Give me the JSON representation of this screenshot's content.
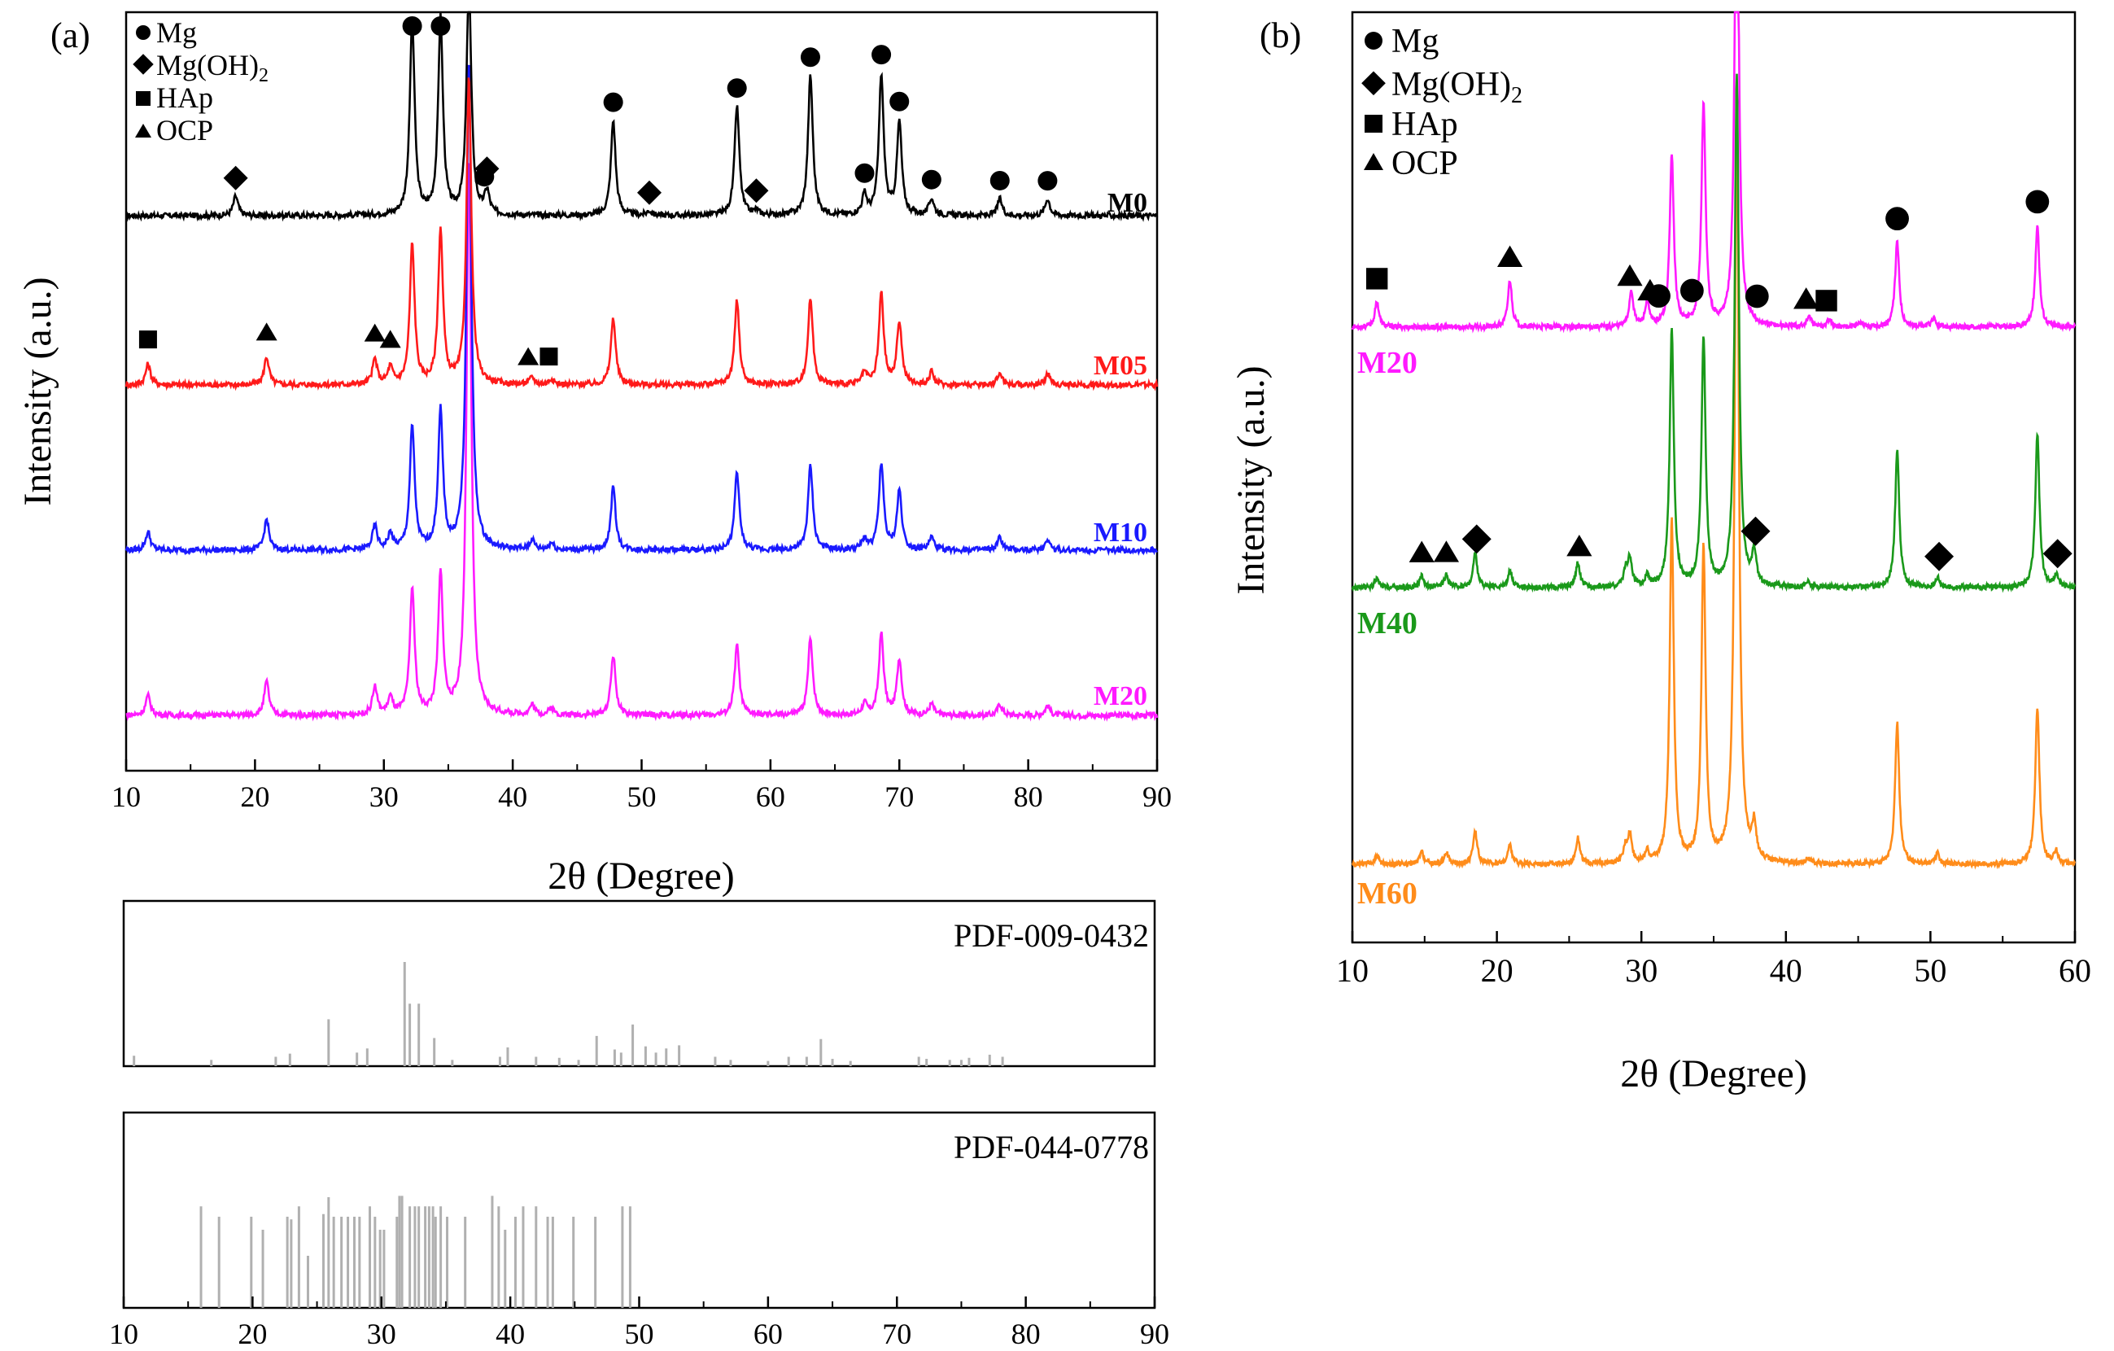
{
  "colors": {
    "M0": "#000000",
    "M05": "#ff1a1a",
    "M10": "#1a1aff",
    "M20": "#ff1aff",
    "M40": "#1a991a",
    "M60": "#ff8c1a",
    "pdf_lines": "#b0b0b0",
    "axis": "#000000"
  },
  "chart_data": [
    {
      "type": "line",
      "panel": "(a)",
      "title": "",
      "xlabel": "2θ (Degree)",
      "ylabel": "Intensity (a.u.)",
      "xlim": [
        10,
        90
      ],
      "xticks": [
        10,
        20,
        30,
        40,
        50,
        60,
        70,
        80,
        90
      ],
      "legend": [
        "Mg",
        "Mg(OH)2",
        "HAp",
        "OCP"
      ],
      "legend_display": {
        "mg": "Mg",
        "mgoh": "Mg(OH)",
        "mgoh_sub": "2",
        "hap": "HAp",
        "ocp": "OCP"
      },
      "legend_position": "top-left",
      "series": [
        {
          "name": "M0",
          "peaks": [
            [
              18.5,
              14
            ],
            [
              32.2,
              140
            ],
            [
              34.4,
              140
            ],
            [
              36.6,
              165
            ],
            [
              38.0,
              16
            ],
            [
              47.8,
              68
            ],
            [
              50.6,
              3
            ],
            [
              57.4,
              78
            ],
            [
              58.9,
              3
            ],
            [
              63.1,
              100
            ],
            [
              67.3,
              14
            ],
            [
              68.6,
              100
            ],
            [
              70.0,
              66
            ],
            [
              72.5,
              12
            ],
            [
              77.8,
              12
            ],
            [
              81.5,
              12
            ]
          ]
        },
        {
          "name": "M05",
          "peaks": [
            [
              11.7,
              15
            ],
            [
              20.9,
              20
            ],
            [
              29.3,
              18
            ],
            [
              30.5,
              12
            ],
            [
              32.2,
              100
            ],
            [
              34.4,
              110
            ],
            [
              36.6,
              220
            ],
            [
              41.5,
              5
            ],
            [
              43.0,
              4
            ],
            [
              47.8,
              48
            ],
            [
              57.4,
              60
            ],
            [
              63.1,
              62
            ],
            [
              67.3,
              8
            ],
            [
              68.6,
              65
            ],
            [
              70.0,
              45
            ],
            [
              72.5,
              9
            ],
            [
              77.8,
              9
            ],
            [
              81.5,
              8
            ]
          ]
        },
        {
          "name": "M10",
          "peaks": [
            [
              11.7,
              13
            ],
            [
              20.9,
              22
            ],
            [
              29.3,
              17
            ],
            [
              30.5,
              11
            ],
            [
              32.2,
              88
            ],
            [
              34.4,
              98
            ],
            [
              36.6,
              350
            ],
            [
              41.5,
              7
            ],
            [
              43.0,
              5
            ],
            [
              47.8,
              45
            ],
            [
              57.4,
              55
            ],
            [
              63.1,
              60
            ],
            [
              67.3,
              8
            ],
            [
              68.6,
              62
            ],
            [
              70.0,
              42
            ],
            [
              72.5,
              9
            ],
            [
              77.8,
              9
            ],
            [
              81.5,
              8
            ]
          ]
        },
        {
          "name": "M20",
          "peaks": [
            [
              11.7,
              14
            ],
            [
              20.9,
              24
            ],
            [
              29.3,
              20
            ],
            [
              30.5,
              12
            ],
            [
              32.2,
              90
            ],
            [
              34.4,
              100
            ],
            [
              36.6,
              400
            ],
            [
              41.5,
              7
            ],
            [
              43.0,
              5
            ],
            [
              47.8,
              43
            ],
            [
              57.4,
              50
            ],
            [
              63.1,
              55
            ],
            [
              67.3,
              8
            ],
            [
              68.6,
              58
            ],
            [
              70.0,
              40
            ],
            [
              72.5,
              8
            ],
            [
              77.8,
              8
            ],
            [
              81.5,
              7
            ]
          ]
        }
      ],
      "markers": {
        "M0": [
          {
            "type": "diamond",
            "x": [
              18.5,
              38.0,
              50.6,
              58.9
            ]
          },
          {
            "type": "circle",
            "x": [
              32.2,
              34.4,
              37.8,
              47.8,
              57.4,
              63.1,
              67.3,
              68.6,
              70.0,
              72.5,
              77.8,
              81.5
            ]
          }
        ],
        "M05": [
          {
            "type": "square",
            "x": [
              11.7,
              42.8
            ]
          },
          {
            "type": "triangle",
            "x": [
              20.9,
              29.3,
              30.5,
              41.2
            ]
          }
        ]
      },
      "series_labels": [
        "M0",
        "M05",
        "M10",
        "M20"
      ]
    },
    {
      "type": "bar",
      "panel": "(a) reference PDF-009-0432",
      "label": "PDF-009-0432",
      "xlim": [
        10,
        90
      ],
      "sticks": [
        [
          10.8,
          10
        ],
        [
          16.8,
          6
        ],
        [
          21.8,
          9
        ],
        [
          22.9,
          12
        ],
        [
          25.9,
          45
        ],
        [
          28.1,
          13
        ],
        [
          28.9,
          17
        ],
        [
          31.8,
          100
        ],
        [
          32.2,
          60
        ],
        [
          32.9,
          60
        ],
        [
          34.1,
          27
        ],
        [
          35.5,
          6
        ],
        [
          39.2,
          9
        ],
        [
          39.8,
          18
        ],
        [
          42.0,
          9
        ],
        [
          43.8,
          8
        ],
        [
          45.3,
          6
        ],
        [
          46.7,
          29
        ],
        [
          48.1,
          16
        ],
        [
          48.6,
          13
        ],
        [
          49.5,
          40
        ],
        [
          50.5,
          19
        ],
        [
          51.3,
          13
        ],
        [
          52.1,
          17
        ],
        [
          53.1,
          20
        ],
        [
          55.9,
          9
        ],
        [
          57.1,
          6
        ],
        [
          60.0,
          5
        ],
        [
          61.6,
          9
        ],
        [
          63.0,
          9
        ],
        [
          64.1,
          26
        ],
        [
          65.0,
          7
        ],
        [
          66.4,
          5
        ],
        [
          71.7,
          9
        ],
        [
          72.3,
          7
        ],
        [
          74.1,
          6
        ],
        [
          75.0,
          6
        ],
        [
          75.6,
          8
        ],
        [
          77.2,
          11
        ],
        [
          78.2,
          9
        ]
      ],
      "xticks": []
    },
    {
      "type": "bar",
      "panel": "(a) reference PDF-044-0778",
      "label": "PDF-044-0778",
      "xlim": [
        10,
        90
      ],
      "xticks": [
        10,
        20,
        30,
        40,
        50,
        60,
        70,
        80,
        90
      ],
      "sticks": [
        [
          16.0,
          78
        ],
        [
          17.4,
          70
        ],
        [
          19.9,
          70
        ],
        [
          20.8,
          60
        ],
        [
          22.7,
          70
        ],
        [
          23.0,
          68
        ],
        [
          23.6,
          78
        ],
        [
          24.3,
          40
        ],
        [
          25.5,
          72
        ],
        [
          25.9,
          85
        ],
        [
          26.3,
          70
        ],
        [
          26.9,
          70
        ],
        [
          27.4,
          70
        ],
        [
          27.9,
          70
        ],
        [
          28.3,
          70
        ],
        [
          29.1,
          78
        ],
        [
          29.5,
          70
        ],
        [
          29.9,
          60
        ],
        [
          30.2,
          60
        ],
        [
          31.2,
          70
        ],
        [
          31.4,
          86
        ],
        [
          31.6,
          86
        ],
        [
          32.2,
          78
        ],
        [
          32.6,
          78
        ],
        [
          32.9,
          78
        ],
        [
          33.4,
          78
        ],
        [
          33.7,
          78
        ],
        [
          34.0,
          78
        ],
        [
          34.2,
          70
        ],
        [
          34.6,
          78
        ],
        [
          35.1,
          70
        ],
        [
          36.5,
          70
        ],
        [
          38.6,
          86
        ],
        [
          39.1,
          78
        ],
        [
          39.6,
          60
        ],
        [
          40.4,
          70
        ],
        [
          41.0,
          78
        ],
        [
          42.0,
          78
        ],
        [
          42.9,
          70
        ],
        [
          43.3,
          70
        ],
        [
          44.9,
          70
        ],
        [
          46.6,
          70
        ],
        [
          48.7,
          78
        ],
        [
          49.3,
          78
        ]
      ]
    },
    {
      "type": "line",
      "panel": "(b)",
      "title": "",
      "xlabel": "2θ (Degree)",
      "ylabel": "Intensity (a.u.)",
      "xlim": [
        10,
        60
      ],
      "xticks": [
        10,
        20,
        30,
        40,
        50,
        60
      ],
      "legend": [
        "Mg",
        "Mg(OH)2",
        "HAp",
        "OCP"
      ],
      "legend_display": {
        "mg": "Mg",
        "mgoh": "Mg(OH)",
        "mgoh_sub": "2",
        "hap": "HAp",
        "ocp": "OCP"
      },
      "legend_position": "top-left",
      "series": [
        {
          "name": "M20",
          "peaks": [
            [
              11.7,
              30
            ],
            [
              20.9,
              55
            ],
            [
              29.3,
              42
            ],
            [
              30.4,
              28
            ],
            [
              32.1,
              200
            ],
            [
              34.3,
              260
            ],
            [
              36.6,
              600
            ],
            [
              41.6,
              12
            ],
            [
              43.0,
              8
            ],
            [
              45.2,
              6
            ],
            [
              47.7,
              100
            ],
            [
              50.2,
              10
            ],
            [
              57.4,
              120
            ]
          ]
        },
        {
          "name": "M40",
          "peaks": [
            [
              11.7,
              10
            ],
            [
              14.8,
              14
            ],
            [
              16.5,
              14
            ],
            [
              18.5,
              40
            ],
            [
              20.9,
              20
            ],
            [
              25.6,
              28
            ],
            [
              28.9,
              18
            ],
            [
              29.2,
              32
            ],
            [
              30.4,
              12
            ],
            [
              32.1,
              300
            ],
            [
              34.3,
              290
            ],
            [
              36.6,
              600
            ],
            [
              37.8,
              38
            ],
            [
              41.5,
              6
            ],
            [
              47.7,
              160
            ],
            [
              50.5,
              12
            ],
            [
              57.4,
              180
            ],
            [
              58.7,
              14
            ]
          ]
        },
        {
          "name": "M60",
          "peaks": [
            [
              11.7,
              10
            ],
            [
              14.8,
              14
            ],
            [
              16.5,
              14
            ],
            [
              18.5,
              38
            ],
            [
              20.9,
              22
            ],
            [
              25.6,
              30
            ],
            [
              28.9,
              18
            ],
            [
              29.2,
              32
            ],
            [
              30.4,
              12
            ],
            [
              32.1,
              400
            ],
            [
              34.3,
              370
            ],
            [
              36.6,
              900
            ],
            [
              37.8,
              40
            ],
            [
              41.5,
              6
            ],
            [
              47.7,
              165
            ],
            [
              50.5,
              12
            ],
            [
              57.4,
              185
            ],
            [
              58.7,
              14
            ]
          ]
        }
      ],
      "markers": {
        "M20": [
          {
            "type": "circle",
            "x": [
              31.2,
              33.5,
              38.0,
              47.7,
              57.4
            ]
          },
          {
            "type": "square",
            "x": [
              11.7,
              42.8
            ]
          },
          {
            "type": "triangle",
            "x": [
              20.9,
              29.2,
              30.6,
              41.4
            ]
          }
        ],
        "M40": [
          {
            "type": "diamond",
            "x": [
              18.6,
              37.9,
              50.6,
              58.8
            ]
          },
          {
            "type": "triangle",
            "x": [
              14.8,
              16.5,
              25.7
            ]
          }
        ]
      },
      "series_labels": [
        "M20",
        "M40",
        "M60"
      ]
    }
  ]
}
